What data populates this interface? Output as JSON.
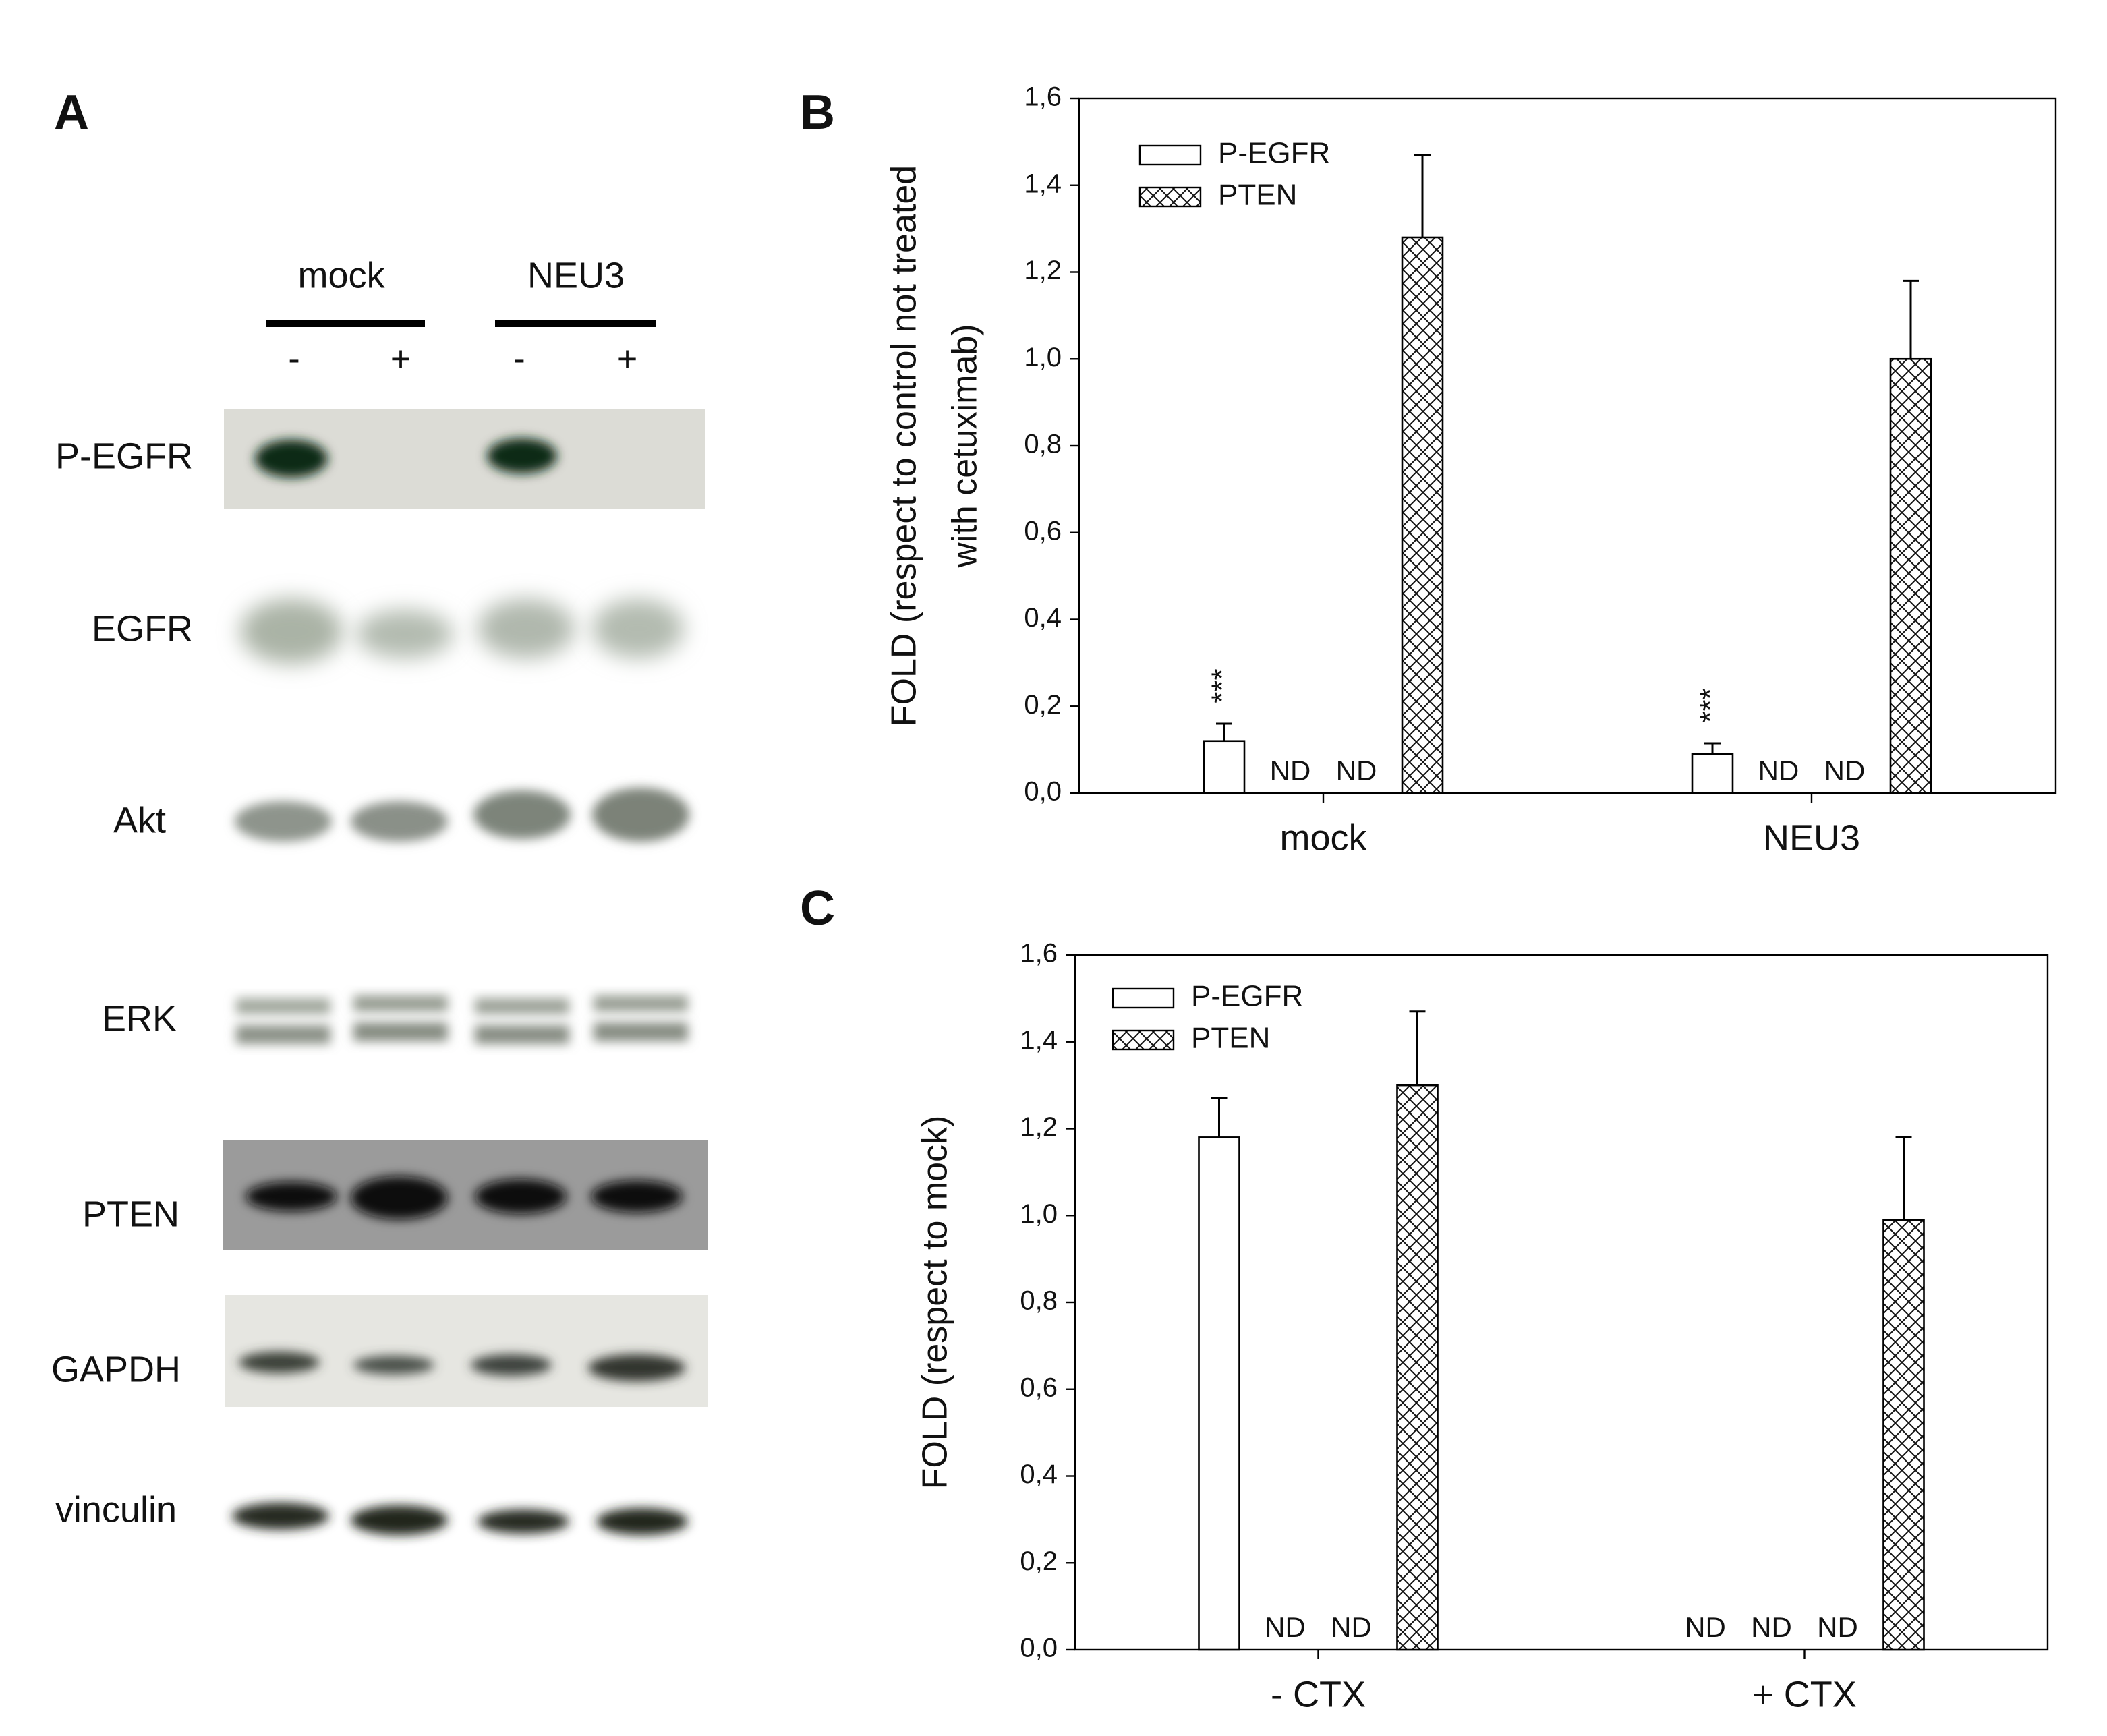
{
  "panel_a": {
    "panel_label": "A",
    "groups": [
      "mock",
      "NEU3"
    ],
    "treatments": [
      "-",
      "+",
      "-",
      "+"
    ],
    "rows": [
      "P-EGFR",
      "EGFR",
      "Akt",
      "ERK",
      "PTEN",
      "GAPDH",
      "vinculin"
    ]
  },
  "chart_data": [
    {
      "type": "bar",
      "panel_label": "B",
      "ylabel": [
        "FOLD (respect to control not treated",
        "with cetuximab)"
      ],
      "categories": [
        "mock",
        "NEU3"
      ],
      "ylim": [
        0,
        1.6
      ],
      "yticks": [
        {
          "value": 0,
          "label": "0,0"
        },
        {
          "value": 0.2,
          "label": "0,2"
        },
        {
          "value": 0.4,
          "label": "0,4"
        },
        {
          "value": 0.6,
          "label": "0,6"
        },
        {
          "value": 0.8,
          "label": "0,8"
        },
        {
          "value": 1.0,
          "label": "1,0"
        },
        {
          "value": 1.2,
          "label": "1,2"
        },
        {
          "value": 1.4,
          "label": "1,4"
        },
        {
          "value": 1.6,
          "label": "1,6"
        }
      ],
      "series": [
        {
          "name": "P-EGFR",
          "fill": "open",
          "values": [
            0.12,
            0.09
          ],
          "errors": [
            0.04,
            0.025
          ],
          "annotations": [
            "***",
            "***"
          ]
        },
        {
          "fill": "open",
          "values": [
            null,
            null
          ],
          "value_labels": [
            "ND",
            "ND"
          ]
        },
        {
          "fill": "hatch",
          "values": [
            null,
            null
          ],
          "value_labels": [
            "ND",
            "ND"
          ]
        },
        {
          "name": "PTEN",
          "fill": "hatch",
          "values": [
            1.28,
            1.0
          ],
          "errors": [
            0.19,
            0.18
          ]
        }
      ]
    },
    {
      "type": "bar",
      "panel_label": "C",
      "ylabel": [
        "FOLD (respect to mock)"
      ],
      "categories": [
        "- CTX",
        "+ CTX"
      ],
      "ylim": [
        0,
        1.6
      ],
      "yticks": [
        {
          "value": 0,
          "label": "0,0"
        },
        {
          "value": 0.2,
          "label": "0,2"
        },
        {
          "value": 0.4,
          "label": "0,4"
        },
        {
          "value": 0.6,
          "label": "0,6"
        },
        {
          "value": 0.8,
          "label": "0,8"
        },
        {
          "value": 1.0,
          "label": "1,0"
        },
        {
          "value": 1.2,
          "label": "1,2"
        },
        {
          "value": 1.4,
          "label": "1,4"
        },
        {
          "value": 1.6,
          "label": "1,6"
        }
      ],
      "series": [
        {
          "name": "P-EGFR",
          "fill": "open",
          "values": [
            1.18,
            null
          ],
          "errors": [
            0.09,
            null
          ],
          "value_labels": [
            null,
            "ND"
          ]
        },
        {
          "fill": "open",
          "values": [
            null,
            null
          ],
          "value_labels": [
            "ND",
            "ND"
          ]
        },
        {
          "fill": "hatch",
          "values": [
            null,
            null
          ],
          "value_labels": [
            "ND",
            "ND"
          ]
        },
        {
          "name": "PTEN",
          "fill": "hatch",
          "values": [
            1.3,
            0.99
          ],
          "errors": [
            0.17,
            0.19
          ]
        }
      ]
    }
  ]
}
